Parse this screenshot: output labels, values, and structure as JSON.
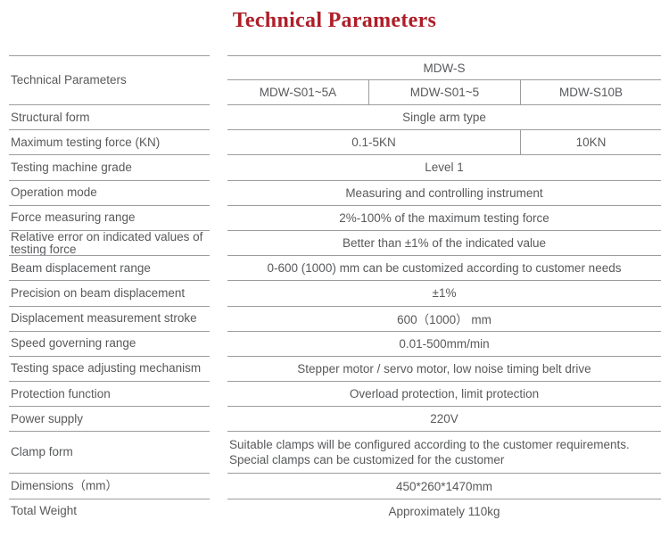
{
  "title": "Technical Parameters",
  "colors": {
    "title_red": "#ae1e28",
    "text_gray": "#58595b",
    "line_gray": "#9a9c9e"
  },
  "table": {
    "header": {
      "label": "Technical Parameters",
      "series": "MDW-S",
      "models": [
        "MDW-S01~5A",
        "MDW-S01~5",
        "MDW-S10B"
      ]
    },
    "rows": {
      "structural_form": {
        "label": "Structural form",
        "value": "Single arm type"
      },
      "max_testing_force": {
        "label": "Maximum testing force (KN)",
        "value_span2": "0.1-5KN",
        "value_col3": "10KN"
      },
      "machine_grade": {
        "label": "Testing machine grade",
        "value": "Level 1"
      },
      "operation_mode": {
        "label": "Operation mode",
        "value": "Measuring and controlling instrument"
      },
      "force_range": {
        "label": "Force measuring range",
        "value": "2%-100% of the maximum testing force"
      },
      "relative_error": {
        "label": "Relative error on indicated values of testing force",
        "value": "Better than ±1% of the indicated value"
      },
      "beam_displacement": {
        "label": "Beam displacement range",
        "value": "0-600 (1000) mm can be customized according to customer needs"
      },
      "precision_beam": {
        "label": "Precision on beam displacement",
        "value": "±1%"
      },
      "displacement_stroke": {
        "label": "Displacement measurement stroke",
        "value": "600（1000） mm"
      },
      "speed_range": {
        "label": "Speed governing range",
        "value": "0.01-500mm/min"
      },
      "space_adjusting": {
        "label": "Testing space adjusting mechanism",
        "value": "Stepper motor / servo motor, low noise timing belt drive"
      },
      "protection": {
        "label": "Protection function",
        "value": "Overload protection, limit protection"
      },
      "power_supply": {
        "label": "Power supply",
        "value": "220V"
      },
      "clamp_form": {
        "label": "Clamp form",
        "line1": "Suitable clamps will be configured according to the customer requirements.",
        "line2": "Special clamps can be customized for the customer"
      },
      "dimensions": {
        "label": "Dimensions（mm）",
        "value": "450*260*1470mm"
      },
      "total_weight": {
        "label": "Total Weight",
        "value": "Approximately 110kg"
      }
    }
  }
}
